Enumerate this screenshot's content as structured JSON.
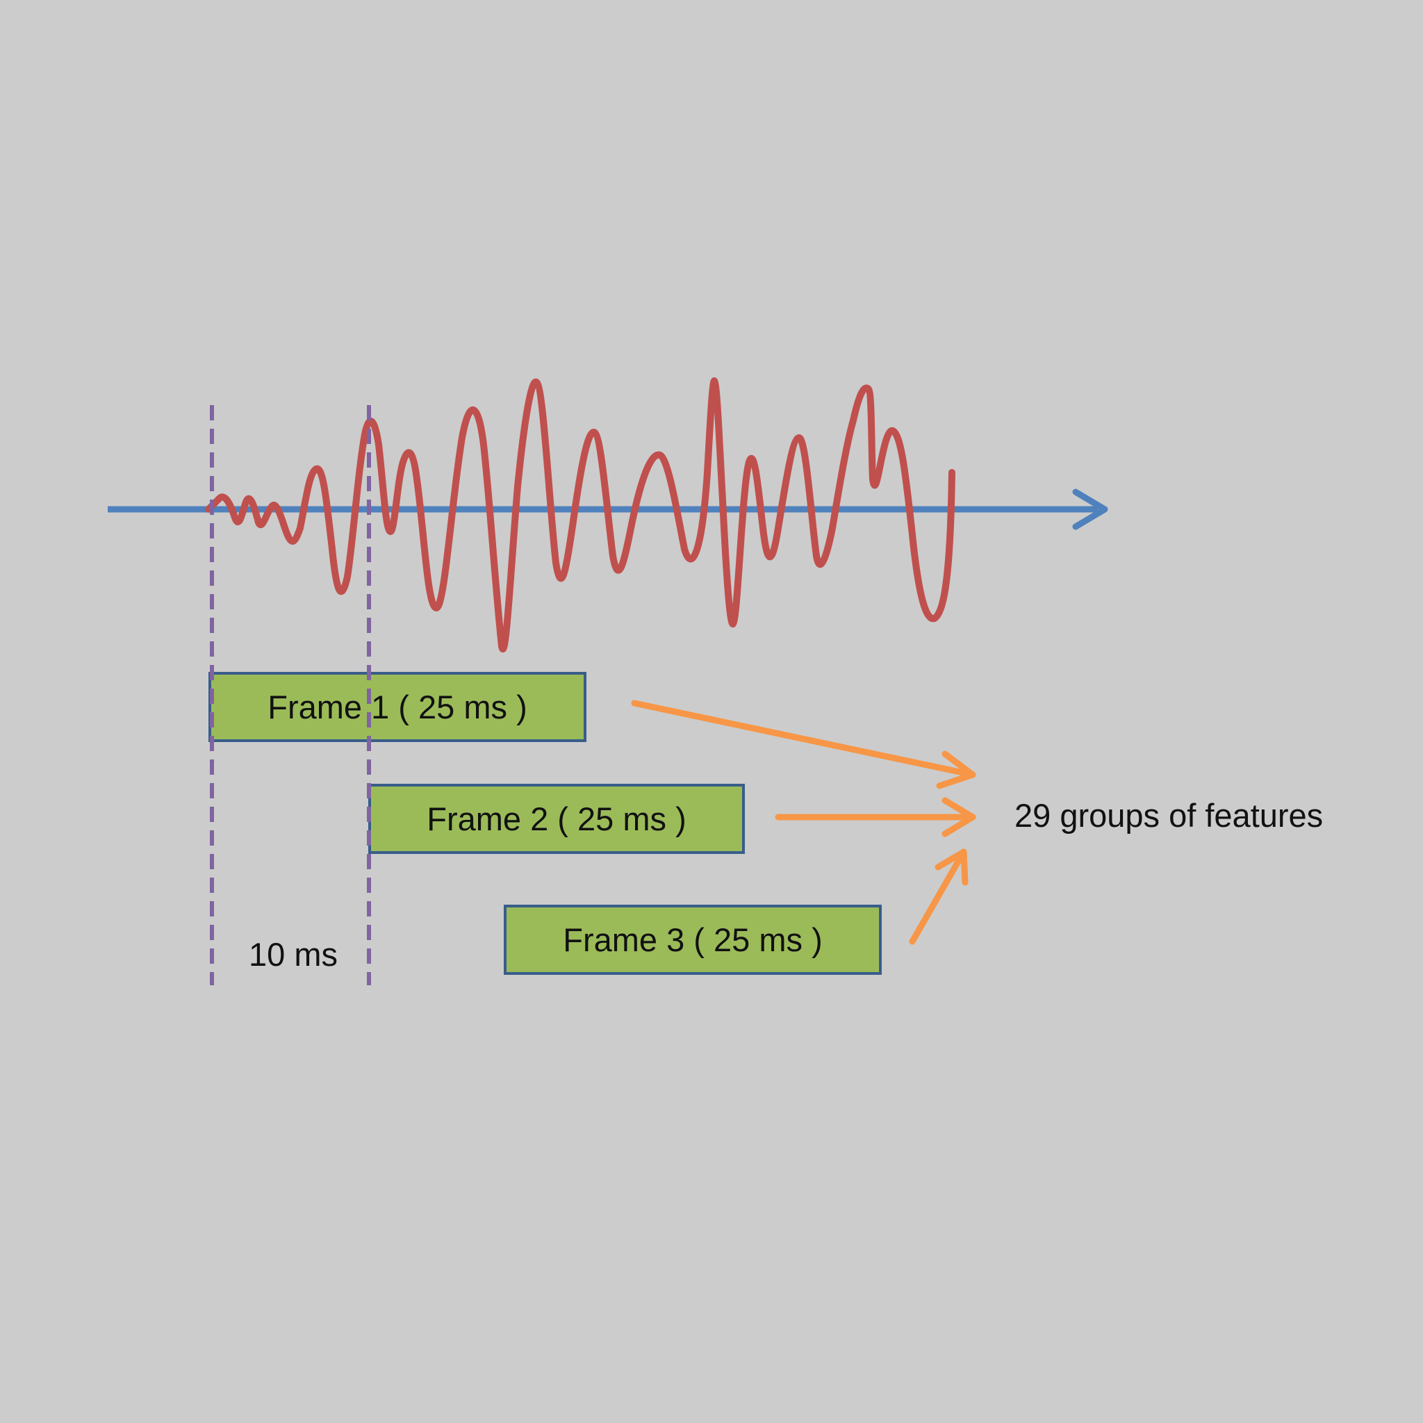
{
  "frames": [
    {
      "label": "Frame 1 ( 25 ms )"
    },
    {
      "label": "Frame 2 ( 25 ms )"
    },
    {
      "label": "Frame 3 ( 25 ms )"
    }
  ],
  "interval_label": "10 ms",
  "output_label": "29 groups of features",
  "colors": {
    "background": "#cccccc",
    "time_axis": "#4f81bd",
    "waveform": "#c0504d",
    "frame_fill": "#9bbb59",
    "frame_border": "#385d8a",
    "frame_markers": "#8064a2",
    "arrows": "#f79646"
  }
}
